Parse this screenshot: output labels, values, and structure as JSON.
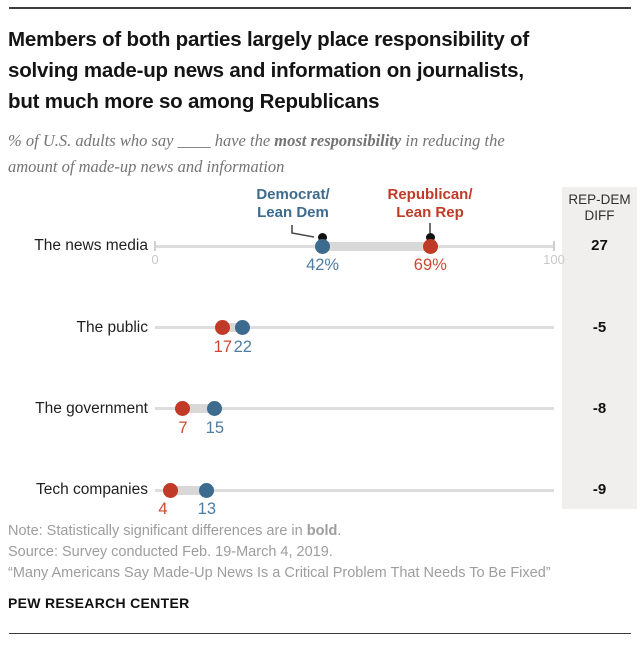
{
  "header": {
    "title_lines": [
      "Members of both parties largely place responsibility of",
      "solving made-up news and information on journalists,",
      "but much more so among Republicans"
    ],
    "subtitle": {
      "line1_prefix": "% of U.S. adults who say ____ have the ",
      "line1_bold": "most responsibility",
      "line1_suffix": " in reducing the",
      "line2": "amount of made-up news and information"
    }
  },
  "chart_data": {
    "type": "scatter",
    "subtype": "dumbbell-dot-plot",
    "categories": [
      "The news media",
      "The public",
      "The government",
      "Tech companies"
    ],
    "series": [
      {
        "name": "Democrat/Lean Dem",
        "color": "#3d6b8e",
        "values": [
          42,
          22,
          15,
          13
        ]
      },
      {
        "name": "Republican/Lean Rep",
        "color": "#c13a28",
        "values": [
          69,
          17,
          7,
          4
        ]
      }
    ],
    "legend": {
      "dem_line1": "Democrat/",
      "dem_line2": "Lean Dem",
      "rep_line1": "Republican/",
      "rep_line2": "Lean Rep"
    },
    "x_axis": {
      "min": 0,
      "max": 100,
      "tick_labels": [
        "0",
        "100"
      ],
      "shown_on_first_row_only": true
    },
    "first_row_value_suffix": "%",
    "diff_column": {
      "header_line1": "REP-DEM",
      "header_line2": "DIFF",
      "values": [
        "27",
        "-5",
        "-8",
        "-9"
      ]
    },
    "colors": {
      "dem": "#3d6b8e",
      "rep": "#c13a28",
      "track": "#dddddd",
      "range_bar": "#d8d8d8",
      "panel_bg": "#f0efed",
      "marker": "#111111"
    }
  },
  "notes": {
    "note_prefix": "Note: Statistically significant differences are in ",
    "note_bold": "bold",
    "note_suffix": ".",
    "source": "Source: Survey conducted Feb. 19-March 4, 2019.",
    "report": "“Many Americans Say Made-Up News Is a Critical Problem That Needs To Be Fixed”"
  },
  "footer": {
    "brand": "PEW RESEARCH CENTER"
  }
}
